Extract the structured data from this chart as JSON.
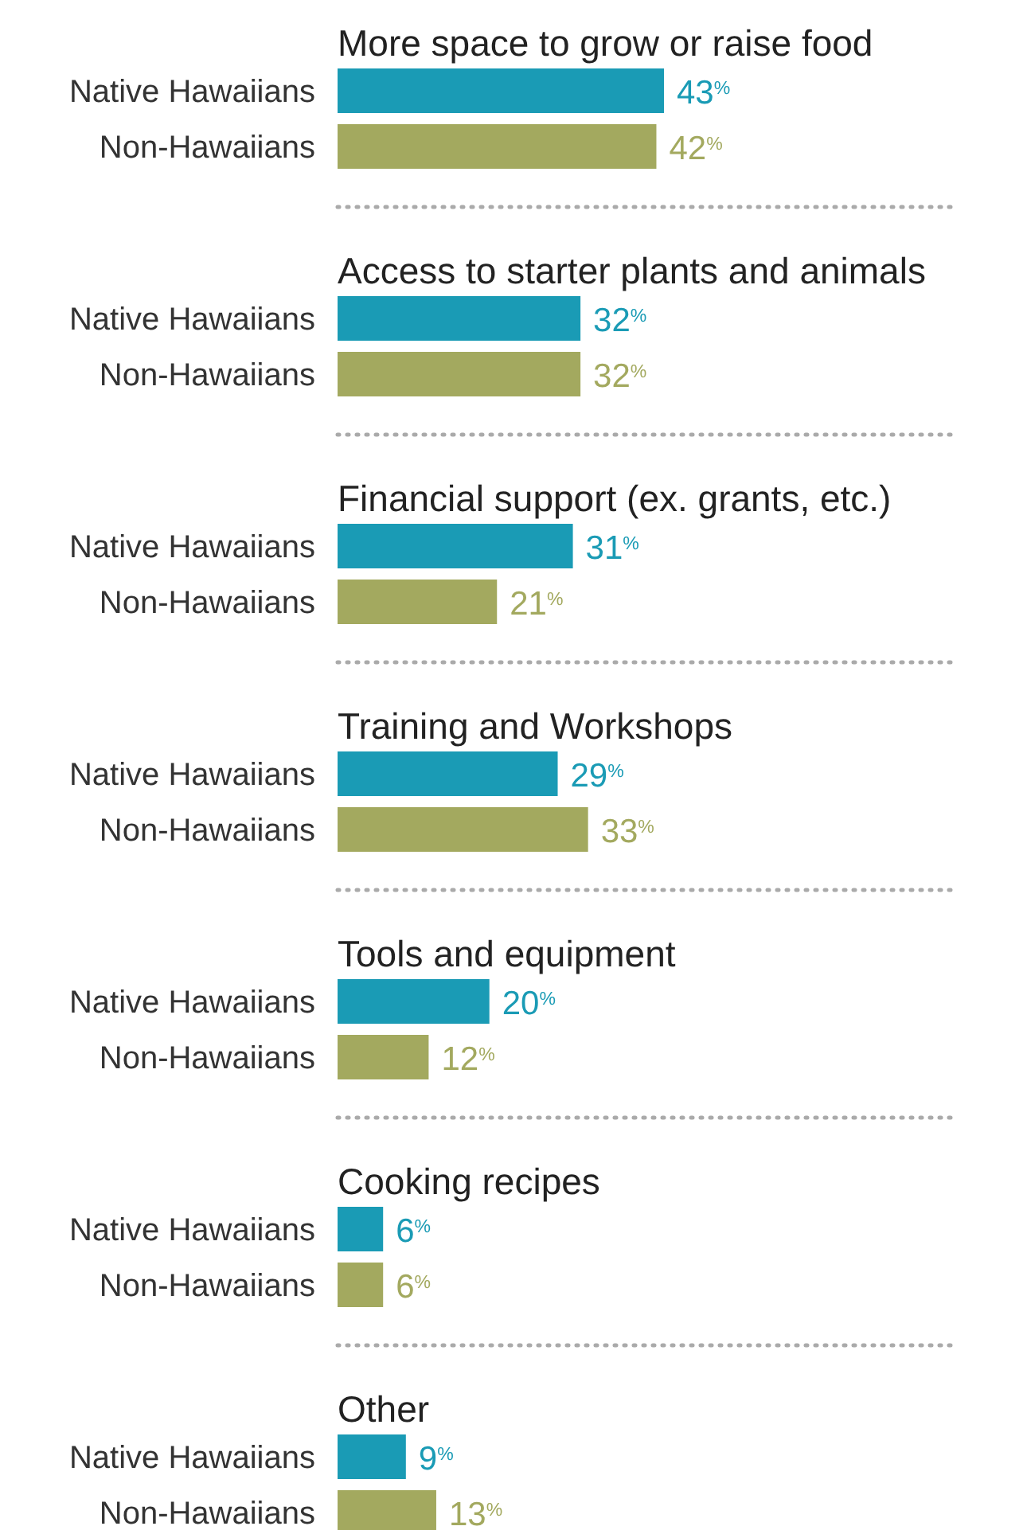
{
  "chart_data": {
    "type": "bar",
    "orientation": "horizontal",
    "categories": [
      "More space to grow or raise food",
      "Access to starter plants and animals",
      "Financial support (ex. grants, etc.)",
      "Training and Workshops",
      "Tools and equipment",
      "Cooking recipes",
      "Other"
    ],
    "series": [
      {
        "name": "Native Hawaiians",
        "color": "#1a9bb5",
        "values": [
          43,
          32,
          31,
          29,
          20,
          6,
          9
        ],
        "value_labels": [
          "43$^{%}$",
          "32$^{%}$",
          "31$^{%}$",
          "29$^{%}$",
          "20$^{%}$",
          "6$^{%}$",
          "9$^{%}$"
        ]
      },
      {
        "name": "Non-Hawaiians",
        "color": "#a3a95f",
        "values": [
          42,
          32,
          21,
          33,
          12,
          6,
          13
        ],
        "value_labels": [
          "42$^{%}$",
          "32$^{%}$",
          "21$^{%}$",
          "33$^{%}$",
          "12$^{%}$",
          "6$^{%}$",
          "13$^{%}$"
        ]
      }
    ]
  }
}
